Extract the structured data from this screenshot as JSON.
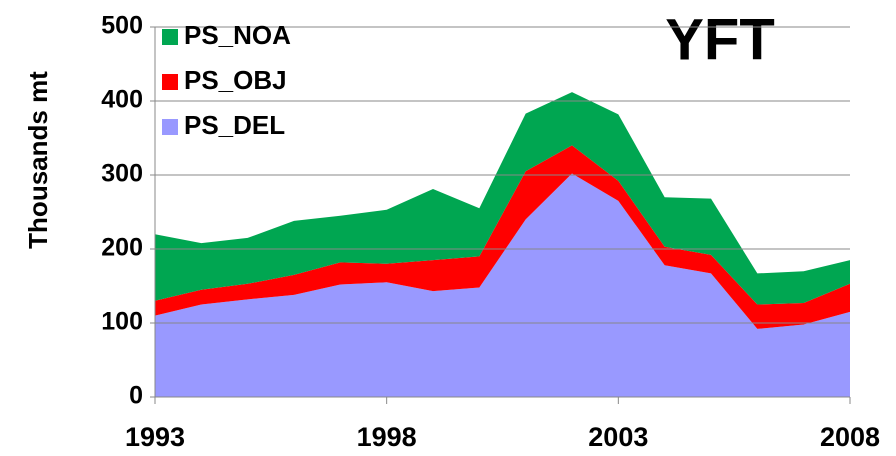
{
  "chart_data": {
    "type": "stacked-area",
    "title": "YFT",
    "y_label": "Thousands mt",
    "x": [
      1993,
      1994,
      1995,
      1996,
      1997,
      1998,
      1999,
      2000,
      2001,
      2002,
      2003,
      2004,
      2005,
      2006,
      2007,
      2008
    ],
    "xlim": [
      1993,
      2008
    ],
    "xticks": [
      1993,
      1998,
      2003,
      2008
    ],
    "ylim": [
      0,
      500
    ],
    "yticks": [
      0,
      100,
      200,
      300,
      400,
      500
    ],
    "grid": true,
    "legend": "upper left",
    "series": [
      {
        "name": "PS_DEL",
        "color": "#9999ff",
        "values": [
          110,
          125,
          132,
          138,
          152,
          155,
          143,
          148,
          240,
          302,
          265,
          178,
          167,
          92,
          98,
          115
        ]
      },
      {
        "name": "PS_OBJ",
        "color": "#ff0000",
        "values": [
          20,
          20,
          21,
          27,
          30,
          25,
          42,
          42,
          65,
          38,
          27,
          25,
          25,
          33,
          29,
          38
        ]
      },
      {
        "name": "PS_NOA",
        "color": "#00a651",
        "values": [
          90,
          63,
          62,
          73,
          63,
          73,
          96,
          65,
          78,
          72,
          90,
          67,
          76,
          42,
          43,
          32
        ]
      }
    ]
  }
}
